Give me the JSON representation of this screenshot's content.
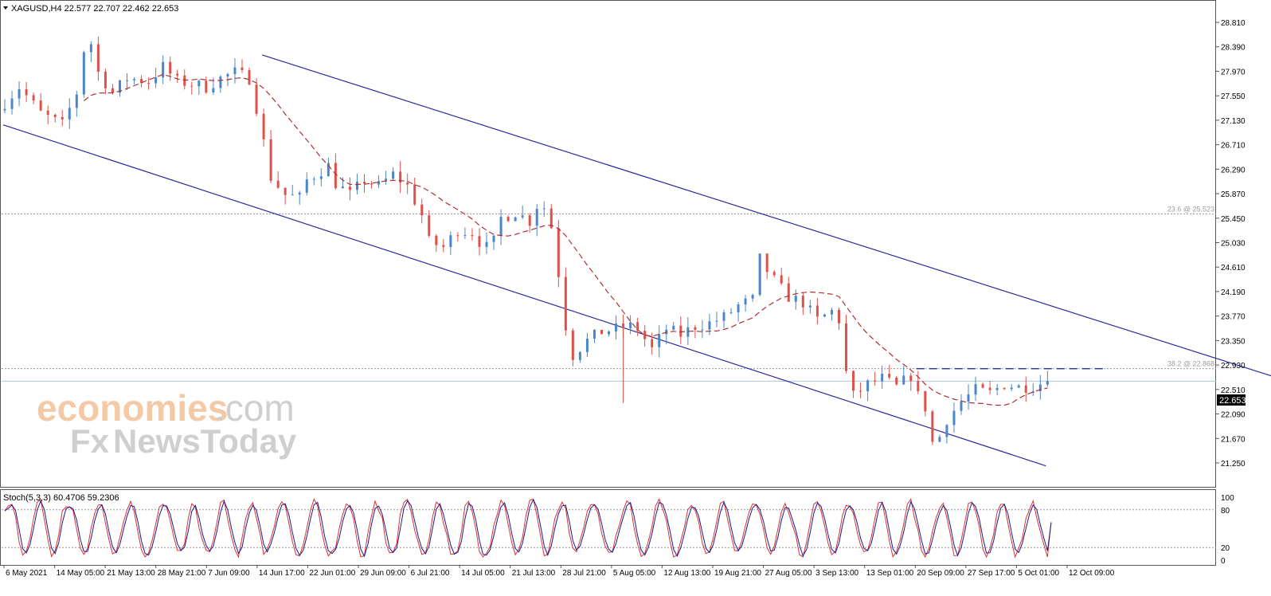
{
  "header": {
    "symbol_line": "XAGUSD,H4  22.577 22.707 22.462 22.653"
  },
  "colors": {
    "candle_up": "#4a86c8",
    "candle_down": "#e0504a",
    "ma": "#b03030",
    "channel": "#2a2a9c",
    "fib": "#9a9a9a",
    "price_line": "#a8c8d8",
    "stoch_main": "#e03030",
    "stoch_signal": "#1a1a8c",
    "watermark_orange": "#f4c9a6",
    "watermark_gray": "#cfcfcf"
  },
  "watermark": {
    "line1_brand": "economies",
    "line1_suffix": ".com",
    "line2_fx": "Fx",
    "line2_rest": "NewsToday"
  },
  "chart_data": [
    {
      "type": "candlestick",
      "title": "XAGUSD,H4",
      "ohlc_last": {
        "open": 22.577,
        "high": 22.707,
        "low": 22.462,
        "close": 22.653
      },
      "current_price_label": "22.653",
      "ylim": [
        21.25,
        28.81
      ],
      "y_ticks": [
        "28.810",
        "28.390",
        "27.970",
        "27.550",
        "27.130",
        "26.710",
        "26.290",
        "25.870",
        "25.450",
        "25.030",
        "24.610",
        "24.190",
        "23.770",
        "23.350",
        "22.930",
        "22.510",
        "22.090",
        "21.670",
        "21.250"
      ],
      "x_labels": [
        "6 May 2021",
        "14 May 05:00",
        "21 May 13:00",
        "28 May 21:00",
        "7 Jun 09:00",
        "14 Jun 17:00",
        "22 Jun 01:00",
        "29 Jun 09:00",
        "6 Jul 21:00",
        "14 Jul 05:00",
        "21 Jul 13:00",
        "28 Jul 21:00",
        "5 Aug 05:00",
        "12 Aug 13:00",
        "19 Aug 21:00",
        "27 Aug 05:00",
        "3 Sep 13:00",
        "13 Sep 01:00",
        "20 Sep 09:00",
        "27 Sep 17:00",
        "5 Oct 01:00",
        "12 Oct 09:00"
      ],
      "price_path": [
        [
          0,
          27.3
        ],
        [
          3,
          27.7
        ],
        [
          6,
          27.25
        ],
        [
          9,
          27.05
        ],
        [
          11,
          27.6
        ],
        [
          12.5,
          28.7
        ],
        [
          14,
          27.95
        ],
        [
          16,
          27.6
        ],
        [
          18,
          27.85
        ],
        [
          21,
          27.8
        ],
        [
          23,
          28.05
        ],
        [
          25,
          27.8
        ],
        [
          27,
          27.75
        ],
        [
          29,
          27.7
        ],
        [
          31,
          27.85
        ],
        [
          33,
          27.95
        ],
        [
          35,
          27.85
        ],
        [
          36,
          27.35
        ],
        [
          38,
          26.15
        ],
        [
          40,
          25.85
        ],
        [
          42,
          25.8
        ],
        [
          43,
          26.1
        ],
        [
          46,
          26.35
        ],
        [
          47,
          26.05
        ],
        [
          49,
          25.85
        ],
        [
          51,
          26.1
        ],
        [
          53,
          26.0
        ],
        [
          55,
          26.2
        ],
        [
          57,
          26.0
        ],
        [
          59,
          25.5
        ],
        [
          60,
          25.05
        ],
        [
          62,
          24.95
        ],
        [
          64,
          25.25
        ],
        [
          66,
          25.2
        ],
        [
          67,
          25.05
        ],
        [
          68,
          24.95
        ],
        [
          69,
          25.05
        ],
        [
          70,
          25.45
        ],
        [
          72,
          25.55
        ],
        [
          74,
          25.4
        ],
        [
          75.5,
          25.8
        ],
        [
          77,
          25.3
        ],
        [
          78,
          24.5
        ],
        [
          79,
          23.6
        ],
        [
          80,
          23.1
        ],
        [
          82,
          23.35
        ],
        [
          84,
          23.5
        ],
        [
          86,
          23.55
        ],
        [
          88,
          23.6
        ],
        [
          89,
          23.55
        ],
        [
          91,
          23.2
        ],
        [
          93,
          23.55
        ],
        [
          95,
          23.45
        ],
        [
          97,
          23.6
        ],
        [
          99,
          23.65
        ],
        [
          101,
          23.75
        ],
        [
          103,
          23.95
        ],
        [
          105,
          24.05
        ],
        [
          106,
          24.75
        ],
        [
          107,
          24.55
        ],
        [
          108.5,
          24.3
        ],
        [
          110,
          24.1
        ],
        [
          112,
          24.0
        ],
        [
          114,
          23.7
        ],
        [
          116,
          23.85
        ],
        [
          117,
          23.7
        ],
        [
          118,
          22.8
        ],
        [
          119,
          22.4
        ],
        [
          121,
          22.6
        ],
        [
          123,
          22.7
        ],
        [
          125,
          22.55
        ],
        [
          127,
          22.75
        ],
        [
          128,
          22.4
        ],
        [
          129.5,
          22.1
        ],
        [
          130,
          21.6
        ],
        [
          131,
          21.7
        ],
        [
          132,
          22.0
        ],
        [
          134,
          22.3
        ],
        [
          136,
          22.5
        ],
        [
          138,
          22.45
        ],
        [
          140,
          22.6
        ],
        [
          142,
          22.55
        ],
        [
          144,
          22.58
        ],
        [
          146,
          22.65
        ]
      ],
      "bar_count": 146,
      "series": [
        {
          "kind": "moving_average"
        },
        {
          "kind": "upper_channel",
          "from": [
            36,
            28.25
          ],
          "to": [
            180,
            22.6
          ]
        },
        {
          "kind": "lower_channel",
          "from": [
            0,
            27.05
          ],
          "to": [
            145,
            21.2
          ]
        },
        {
          "kind": "resistance",
          "value": 22.868,
          "from": 127,
          "to": 153
        }
      ],
      "fib_levels": [
        {
          "label": "23.6 @ 25.523",
          "value": 25.523
        },
        {
          "label": "38.2 @ 22.868",
          "value": 22.868
        }
      ],
      "grid": false
    },
    {
      "type": "line",
      "title": "Stoch(5,3,3) 60.4706 59.2306",
      "main_last": 60.4706,
      "signal_last": 59.2306,
      "ylim": [
        0,
        100
      ],
      "y_ticks": [
        "100",
        "80",
        "20",
        "0"
      ],
      "levels": [
        80,
        20
      ]
    }
  ]
}
